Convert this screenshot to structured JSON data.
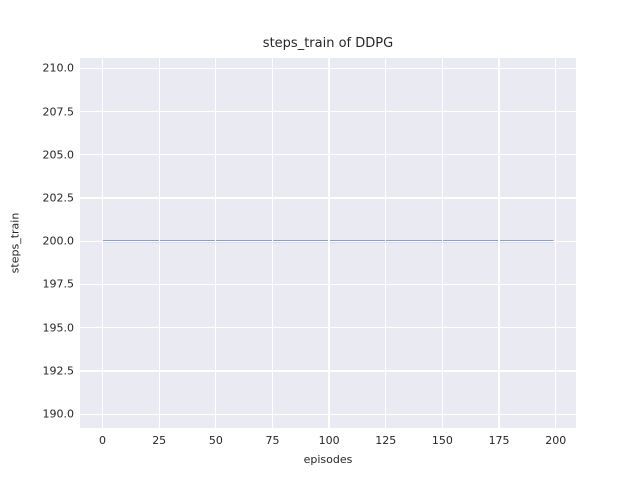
{
  "figure": {
    "background": "#ffffff"
  },
  "chart_data": {
    "type": "line",
    "title": "steps_train of DDPG",
    "xlabel": "episodes",
    "ylabel": "steps_train",
    "plot_background": "#eaeaf2",
    "grid": true,
    "grid_color": "#ffffff",
    "legend": "none",
    "xlim": [
      -9.95,
      208.95
    ],
    "ylim": [
      189.2,
      210.6
    ],
    "x_ticks": [
      {
        "value": 0,
        "label": "0"
      },
      {
        "value": 25,
        "label": "25"
      },
      {
        "value": 50,
        "label": "50"
      },
      {
        "value": 75,
        "label": "75"
      },
      {
        "value": 100,
        "label": "100"
      },
      {
        "value": 125,
        "label": "125"
      },
      {
        "value": 150,
        "label": "150"
      },
      {
        "value": 175,
        "label": "175"
      },
      {
        "value": 200,
        "label": "200"
      }
    ],
    "y_ticks": [
      {
        "value": 210.0,
        "label": "210.0"
      },
      {
        "value": 207.5,
        "label": "207.5"
      },
      {
        "value": 205.0,
        "label": "205.0"
      },
      {
        "value": 202.5,
        "label": "202.5"
      },
      {
        "value": 200.0,
        "label": "200.0"
      },
      {
        "value": 197.5,
        "label": "197.5"
      },
      {
        "value": 195.0,
        "label": "195.0"
      },
      {
        "value": 192.5,
        "label": "192.5"
      },
      {
        "value": 190.0,
        "label": "190.0"
      }
    ],
    "series": [
      {
        "name": "steps_train",
        "color": "#4c72b0",
        "line_width": 1.8,
        "description": "constant value 200 for every episode",
        "x": [
          0,
          199
        ],
        "y": [
          200,
          200
        ]
      }
    ]
  }
}
